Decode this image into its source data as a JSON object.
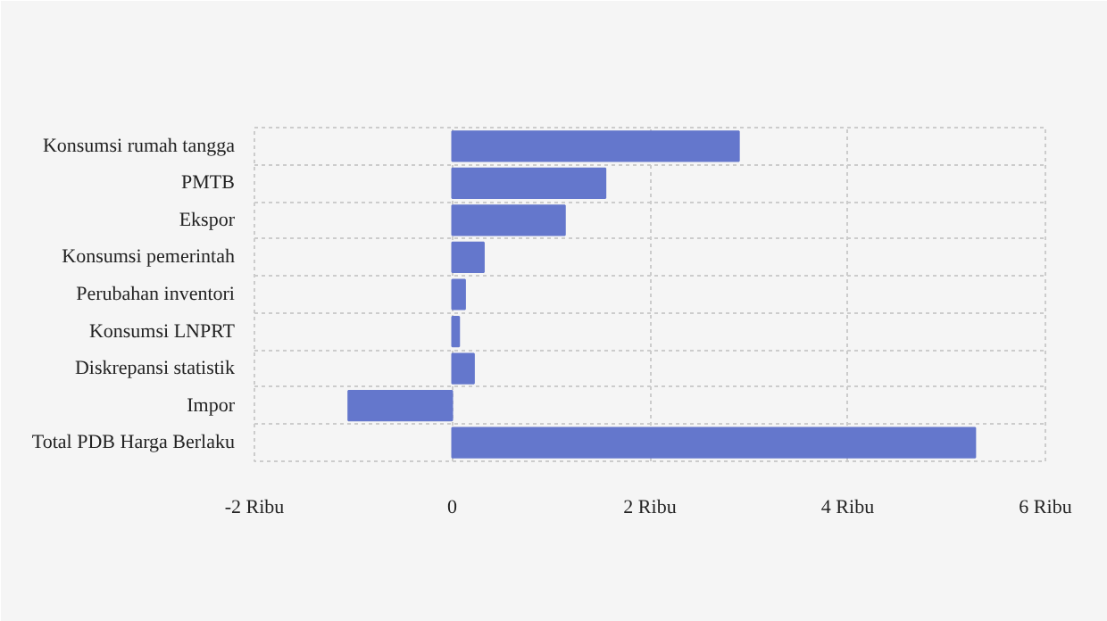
{
  "chart_data": {
    "type": "bar",
    "orientation": "horizontal",
    "categories": [
      "Konsumsi rumah tangga",
      "PMTB",
      "Ekspor",
      "Konsumsi pemerintah",
      "Perubahan inventori",
      "Konsumsi LNPRT",
      "Diskrepansi statistik",
      "Impor",
      "Total PDB Harga Berlaku"
    ],
    "values": [
      2.9,
      1.55,
      1.14,
      0.32,
      0.13,
      0.07,
      0.22,
      -1.05,
      5.29
    ],
    "color": "#6477cc",
    "xlim": [
      -2,
      6
    ],
    "xticks": [
      {
        "value": -2,
        "label": "-2 Ribu"
      },
      0,
      {
        "value": 2,
        "label": "2 Ribu"
      },
      {
        "value": 4,
        "label": "4 Ribu"
      },
      {
        "value": 6,
        "label": "6 Ribu"
      }
    ],
    "grid": true
  }
}
